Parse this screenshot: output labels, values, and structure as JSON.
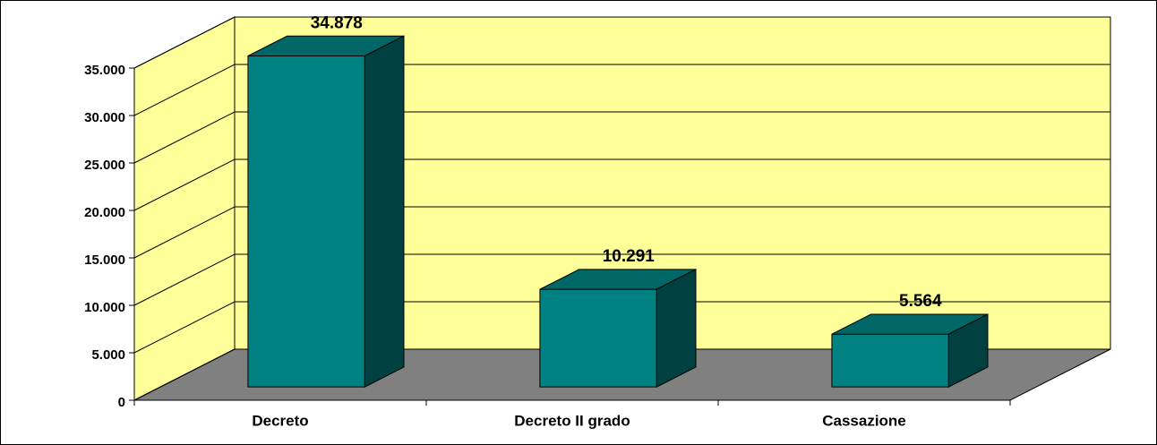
{
  "chart_data": {
    "type": "bar3d",
    "categories": [
      "Decreto",
      "Decreto II grado",
      "Cassazione"
    ],
    "values": [
      34878,
      10291,
      5564
    ],
    "value_labels": [
      "34.878",
      "10.291",
      "5.564"
    ],
    "ylim": [
      0,
      35000
    ],
    "yticks": [
      0,
      {
        "value": 5000,
        "label": "5.000"
      },
      {
        "value": 10000,
        "label": "10.000"
      },
      {
        "value": 15000,
        "label": "15.000"
      },
      {
        "value": 20000,
        "label": "20.000"
      },
      {
        "value": 25000,
        "label": "25.000"
      },
      {
        "value": 30000,
        "label": "30.000"
      },
      {
        "value": 35000,
        "label": "35.000"
      }
    ],
    "color": "#008080",
    "wall_color": "#ffff99",
    "floor_color": "#808080",
    "grid": true
  }
}
